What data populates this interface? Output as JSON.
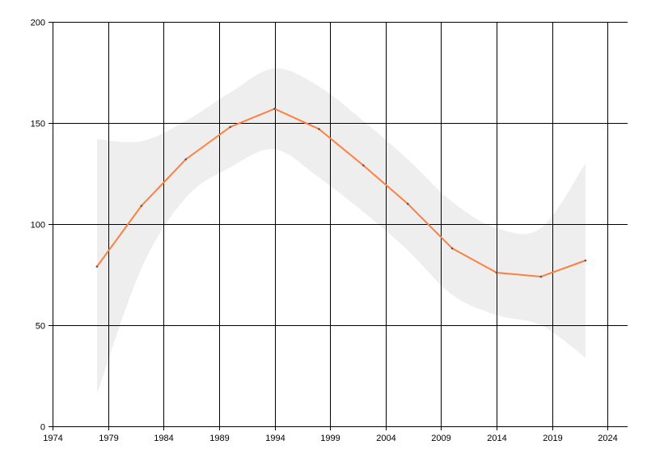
{
  "chart_data": {
    "type": "line",
    "title": "",
    "xlabel": "",
    "ylabel": "",
    "xlim": [
      1974,
      2025.8
    ],
    "ylim": [
      0,
      200
    ],
    "grid": true,
    "x_ticks": [
      "1974",
      "1979",
      "1984",
      "1989",
      "1994",
      "1999",
      "2004",
      "2009",
      "2014",
      "2019",
      "2024"
    ],
    "y_ticks": [
      "0",
      "50",
      "100",
      "150",
      "200"
    ],
    "x": [
      1978,
      1982,
      1986,
      1990,
      1994,
      1998,
      2002,
      2006,
      2010,
      2014,
      2018,
      2022
    ],
    "series": [
      {
        "values": [
          79,
          109,
          132,
          148,
          157,
          147,
          129,
          110,
          88,
          76,
          74,
          82
        ],
        "color": "#ff7f3f"
      }
    ],
    "band": {
      "upper": [
        142,
        141,
        151,
        165,
        177,
        168,
        151,
        132,
        111,
        98,
        98,
        130
      ],
      "lower": [
        16,
        78,
        113,
        128,
        137,
        123,
        106,
        87,
        65,
        55,
        50,
        34
      ],
      "color": "#eeeeee"
    }
  }
}
